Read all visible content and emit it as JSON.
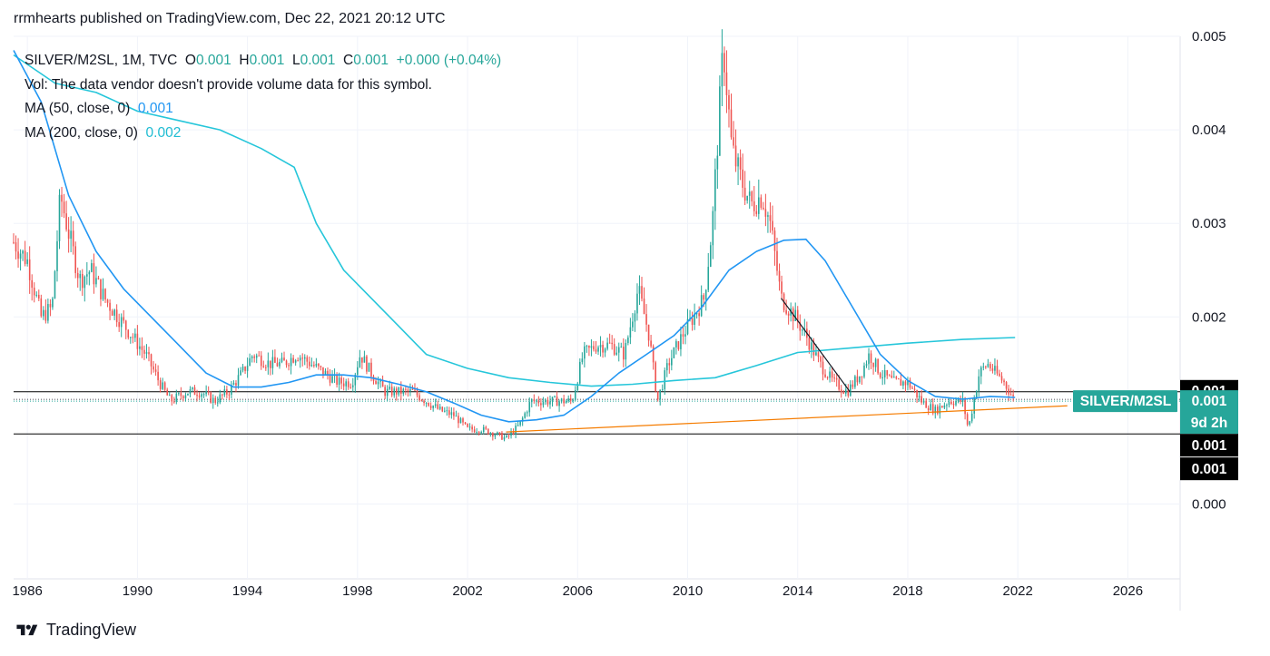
{
  "header": {
    "text": "rrmhearts published on TradingView.com, Dec 22, 2021 20:12 UTC"
  },
  "legend": {
    "symbol": "SILVER/M2SL, 1M, TVC",
    "o_label": "O",
    "o_value": "0.001",
    "h_label": "H",
    "h_value": "0.001",
    "l_label": "L",
    "l_value": "0.001",
    "c_label": "C",
    "c_value": "0.001",
    "change": "+0.000 (+0.04%)",
    "volume_note": "Vol: The data vendor doesn't provide volume data for this symbol.",
    "ma50_label": "MA (50, close, 0)",
    "ma50_value": "0.001",
    "ma200_label": "MA (200, close, 0)",
    "ma200_value": "0.002"
  },
  "price_badges": {
    "symbol_tag": "SILVER/M2SL",
    "last_price": "0.001",
    "countdown": "9d 2h",
    "hline_top": "0.001",
    "hline_bottom_1": "0.001",
    "hline_bottom_2": "0.001"
  },
  "footer": {
    "brand": "TradingView"
  },
  "colors": {
    "up": "#26a69a",
    "down": "#ef5350",
    "ma50": "#2196f3",
    "ma200": "#26c6da",
    "trendline_support": "#f57c00",
    "trendline_down": "#131722",
    "badge_bg": "#26a69a",
    "hline_badge_bg": "#000000"
  },
  "chart_data": {
    "type": "candlestick",
    "symbol": "SILVER/M2SL",
    "interval": "1M",
    "x_ticks": [
      "1986",
      "1990",
      "1994",
      "1998",
      "2002",
      "2006",
      "2010",
      "2014",
      "2018",
      "2022",
      "2026"
    ],
    "y_ticks": [
      "0.000",
      "0.002",
      "0.003",
      "0.004",
      "0.005"
    ],
    "y_range": [
      -0.0008,
      0.005
    ],
    "x_range": [
      1985.5,
      2027.9
    ],
    "grid": true,
    "close_series": [
      [
        1985.5,
        0.0028
      ],
      [
        1986.0,
        0.0026
      ],
      [
        1986.5,
        0.002
      ],
      [
        1986.9,
        0.0021
      ],
      [
        1987.2,
        0.0033
      ],
      [
        1987.5,
        0.0029
      ],
      [
        1987.9,
        0.0024
      ],
      [
        1988.3,
        0.0025
      ],
      [
        1988.8,
        0.0022
      ],
      [
        1989.3,
        0.002
      ],
      [
        1989.8,
        0.0018
      ],
      [
        1990.3,
        0.0016
      ],
      [
        1990.8,
        0.0013
      ],
      [
        1991.2,
        0.0011
      ],
      [
        1991.8,
        0.0012
      ],
      [
        1992.3,
        0.0012
      ],
      [
        1992.8,
        0.0011
      ],
      [
        1993.3,
        0.0012
      ],
      [
        1993.8,
        0.0014
      ],
      [
        1994.2,
        0.0016
      ],
      [
        1994.8,
        0.0015
      ],
      [
        1995.3,
        0.0015
      ],
      [
        1995.8,
        0.0016
      ],
      [
        1996.3,
        0.0015
      ],
      [
        1996.8,
        0.0014
      ],
      [
        1997.3,
        0.0013
      ],
      [
        1997.8,
        0.0013
      ],
      [
        1998.1,
        0.0016
      ],
      [
        1998.5,
        0.0014
      ],
      [
        1999.0,
        0.0012
      ],
      [
        1999.5,
        0.0012
      ],
      [
        2000.0,
        0.0012
      ],
      [
        2000.5,
        0.0011
      ],
      [
        2001.0,
        0.001
      ],
      [
        2001.5,
        0.00095
      ],
      [
        2002.0,
        0.0008
      ],
      [
        2002.5,
        0.0008
      ],
      [
        2003.0,
        0.00075
      ],
      [
        2003.4,
        0.0007
      ],
      [
        2003.9,
        0.00085
      ],
      [
        2004.3,
        0.0011
      ],
      [
        2004.8,
        0.0011
      ],
      [
        2005.3,
        0.0011
      ],
      [
        2005.8,
        0.0011
      ],
      [
        2006.2,
        0.0016
      ],
      [
        2006.7,
        0.0017
      ],
      [
        2007.2,
        0.0017
      ],
      [
        2007.7,
        0.0016
      ],
      [
        2008.2,
        0.0023
      ],
      [
        2008.6,
        0.0018
      ],
      [
        2008.9,
        0.0011
      ],
      [
        2009.3,
        0.0015
      ],
      [
        2009.8,
        0.0018
      ],
      [
        2010.2,
        0.002
      ],
      [
        2010.6,
        0.0022
      ],
      [
        2010.9,
        0.003
      ],
      [
        2011.3,
        0.0049
      ],
      [
        2011.6,
        0.0038
      ],
      [
        2011.9,
        0.0035
      ],
      [
        2012.3,
        0.0032
      ],
      [
        2012.7,
        0.0033
      ],
      [
        2013.0,
        0.003
      ],
      [
        2013.4,
        0.0022
      ],
      [
        2013.9,
        0.002
      ],
      [
        2014.3,
        0.0018
      ],
      [
        2014.8,
        0.0015
      ],
      [
        2015.3,
        0.0013
      ],
      [
        2015.8,
        0.0012
      ],
      [
        2016.3,
        0.0014
      ],
      [
        2016.6,
        0.0016
      ],
      [
        2017.0,
        0.0014
      ],
      [
        2017.5,
        0.0013
      ],
      [
        2018.0,
        0.0013
      ],
      [
        2018.5,
        0.0011
      ],
      [
        2019.0,
        0.001
      ],
      [
        2019.5,
        0.0011
      ],
      [
        2020.0,
        0.0011
      ],
      [
        2020.2,
        0.0008
      ],
      [
        2020.6,
        0.0014
      ],
      [
        2020.9,
        0.0015
      ],
      [
        2021.2,
        0.0014
      ],
      [
        2021.5,
        0.0013
      ],
      [
        2021.9,
        0.0011
      ]
    ],
    "ma50": [
      [
        1985.5,
        0.00485
      ],
      [
        1986.5,
        0.0043
      ],
      [
        1987.5,
        0.0033
      ],
      [
        1988.5,
        0.0027
      ],
      [
        1989.5,
        0.0023
      ],
      [
        1990.5,
        0.002
      ],
      [
        1991.5,
        0.0017
      ],
      [
        1992.5,
        0.0014
      ],
      [
        1993.5,
        0.00125
      ],
      [
        1994.5,
        0.00125
      ],
      [
        1995.5,
        0.0013
      ],
      [
        1996.5,
        0.00138
      ],
      [
        1997.5,
        0.00138
      ],
      [
        1998.5,
        0.00135
      ],
      [
        1999.5,
        0.00128
      ],
      [
        2000.5,
        0.0012
      ],
      [
        2001.5,
        0.00108
      ],
      [
        2002.5,
        0.00095
      ],
      [
        2003.5,
        0.00088
      ],
      [
        2004.5,
        0.0009
      ],
      [
        2005.5,
        0.00095
      ],
      [
        2006.5,
        0.00115
      ],
      [
        2007.5,
        0.0014
      ],
      [
        2008.5,
        0.0016
      ],
      [
        2009.5,
        0.0018
      ],
      [
        2010.5,
        0.0021
      ],
      [
        2011.5,
        0.0025
      ],
      [
        2012.5,
        0.0027
      ],
      [
        2013.5,
        0.00282
      ],
      [
        2014.3,
        0.00283
      ],
      [
        2015.0,
        0.0026
      ],
      [
        2016.0,
        0.0021
      ],
      [
        2017.0,
        0.0016
      ],
      [
        2018.0,
        0.00132
      ],
      [
        2019.0,
        0.00115
      ],
      [
        2020.0,
        0.00112
      ],
      [
        2021.0,
        0.00115
      ],
      [
        2021.9,
        0.00114
      ]
    ],
    "ma200": [
      [
        1985.5,
        0.0048
      ],
      [
        1987.0,
        0.0045
      ],
      [
        1988.5,
        0.0044
      ],
      [
        1990.0,
        0.0042
      ],
      [
        1991.5,
        0.0041
      ],
      [
        1993.0,
        0.004
      ],
      [
        1994.5,
        0.0038
      ],
      [
        1995.7,
        0.0036
      ],
      [
        1996.5,
        0.003
      ],
      [
        1997.5,
        0.0025
      ],
      [
        1998.5,
        0.0022
      ],
      [
        1999.5,
        0.0019
      ],
      [
        2000.5,
        0.0016
      ],
      [
        2002.0,
        0.00145
      ],
      [
        2003.5,
        0.00135
      ],
      [
        2005.0,
        0.0013
      ],
      [
        2006.5,
        0.00126
      ],
      [
        2008.0,
        0.00128
      ],
      [
        2009.5,
        0.00132
      ],
      [
        2011.0,
        0.00135
      ],
      [
        2012.5,
        0.00148
      ],
      [
        2014.0,
        0.00162
      ],
      [
        2016.0,
        0.00167
      ],
      [
        2018.0,
        0.00172
      ],
      [
        2020.0,
        0.00176
      ],
      [
        2021.9,
        0.00178
      ]
    ],
    "drawings": {
      "hline_top": 0.0012,
      "hline_bottom": 0.00075,
      "support_trendline": [
        [
          2003.4,
          0.00077
        ],
        [
          2023.8,
          0.00105
        ]
      ],
      "down_trendline": [
        [
          2013.4,
          0.0022
        ],
        [
          2015.9,
          0.0012
        ]
      ]
    }
  }
}
